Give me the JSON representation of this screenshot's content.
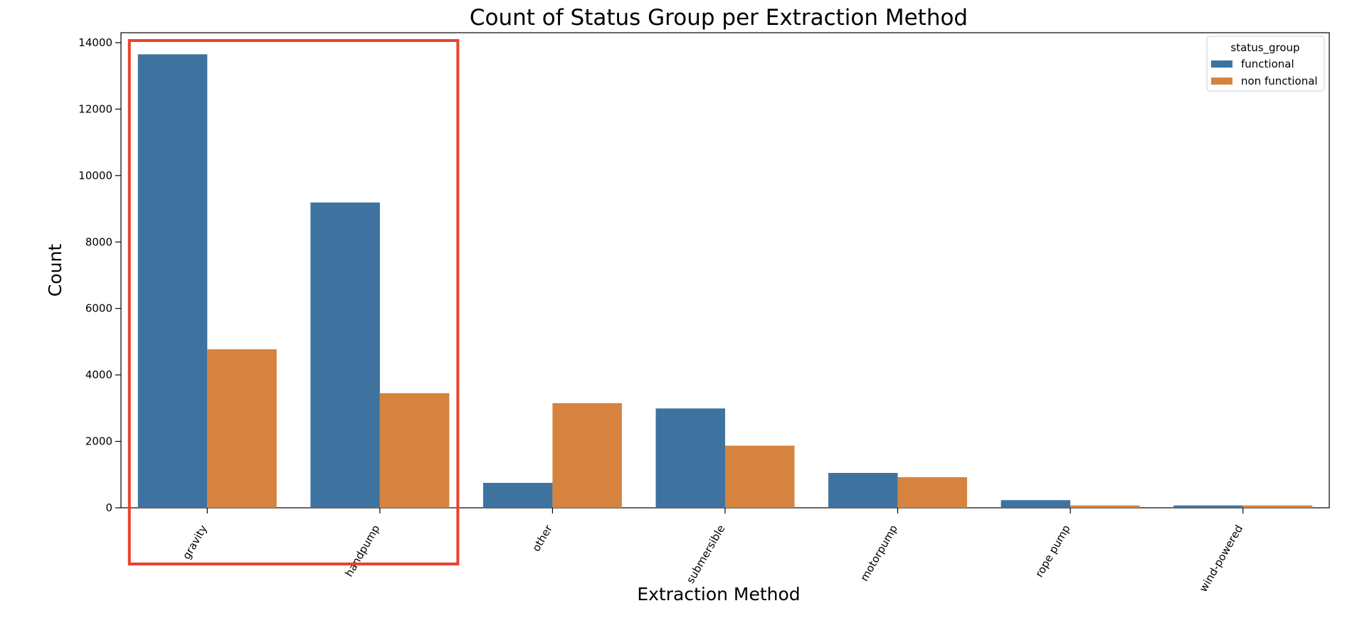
{
  "chart_data": {
    "type": "bar",
    "title": "Count of Status Group per Extraction Method",
    "xlabel": "Extraction Method",
    "ylabel": "Count",
    "categories": [
      "gravity",
      "handpump",
      "other",
      "submersible",
      "motorpump",
      "rope pump",
      "wind-powered"
    ],
    "series": [
      {
        "name": "functional",
        "color": "#3e73a0",
        "values": [
          13650,
          9190,
          750,
          2990,
          1050,
          230,
          70
        ]
      },
      {
        "name": "non functional",
        "color": "#d5833f",
        "values": [
          4770,
          3450,
          3150,
          1870,
          920,
          70,
          70
        ]
      }
    ],
    "ylim": [
      0,
      14000
    ],
    "yticks": [
      0,
      2000,
      4000,
      6000,
      8000,
      10000,
      12000,
      14000
    ],
    "grid": false,
    "legend": {
      "title": "status_group",
      "placement": "top-right"
    },
    "annotation": {
      "type": "highlight-box",
      "color": "#e8432d",
      "categories": [
        "gravity",
        "handpump"
      ]
    }
  }
}
